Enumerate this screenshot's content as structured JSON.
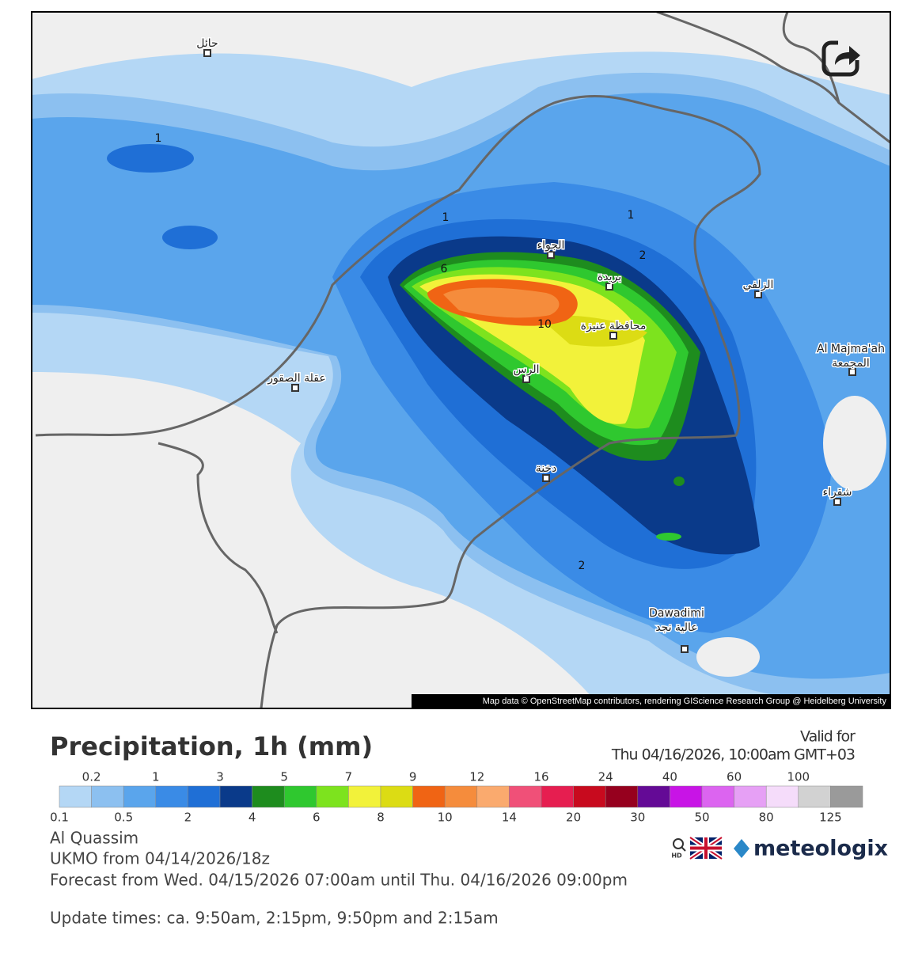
{
  "map": {
    "places": [
      {
        "name": "حائل"
      },
      {
        "name": "الجواء"
      },
      {
        "name": "بريدة"
      },
      {
        "name": "الزلفي"
      },
      {
        "name": "محافظة عنيزة"
      },
      {
        "name": "Al Majma'ah",
        "name2": "المجمعة"
      },
      {
        "name": "عقلة الصقور"
      },
      {
        "name": "الرس"
      },
      {
        "name": "دخنة"
      },
      {
        "name": "شقراء"
      },
      {
        "name": "Dawadimi",
        "name2": "عالية نجد"
      }
    ],
    "contour_labels": [
      1,
      1,
      1,
      2,
      6,
      10,
      2
    ],
    "attribution": "Map data © OpenStreetMap contributors, rendering GIScience Research Group @ Heidelberg University"
  },
  "title": "Precipitation, 1h (mm)",
  "valid": {
    "label": "Valid for",
    "time": "Thu 04/16/2026, 10:00am GMT+03"
  },
  "legend": {
    "ticks": [
      0.1,
      0.2,
      0.5,
      1,
      2,
      3,
      4,
      5,
      6,
      7,
      8,
      9,
      10,
      12,
      14,
      16,
      20,
      24,
      30,
      40,
      50,
      60,
      80,
      100,
      125
    ],
    "colors": [
      "#b4d7f5",
      "#8cc0f0",
      "#5aa5ec",
      "#3a8be6",
      "#1f6fd6",
      "#0a3a8a",
      "#1e8c1e",
      "#2fc82f",
      "#7de31e",
      "#f2f23a",
      "#dcdc14",
      "#f06414",
      "#f58c3c",
      "#faaa6e",
      "#f05078",
      "#e61e50",
      "#c80a1e",
      "#96001e",
      "#640a96",
      "#c814e6",
      "#dc64f0",
      "#e6a0f5",
      "#f5dcfa",
      "#d2d2d2",
      "#9a9a9a"
    ]
  },
  "info": {
    "region": "Al Quassim",
    "model": "UKMO from 04/14/2026/18z",
    "forecast": "Forecast from Wed. 04/15/2026 07:00am until Thu. 04/16/2026 09:00pm",
    "updates": "Update times: ca. 9:50am, 2:15pm, 9:50pm and 2:15am"
  },
  "brand": {
    "hd": "HD",
    "name": "meteologix"
  }
}
